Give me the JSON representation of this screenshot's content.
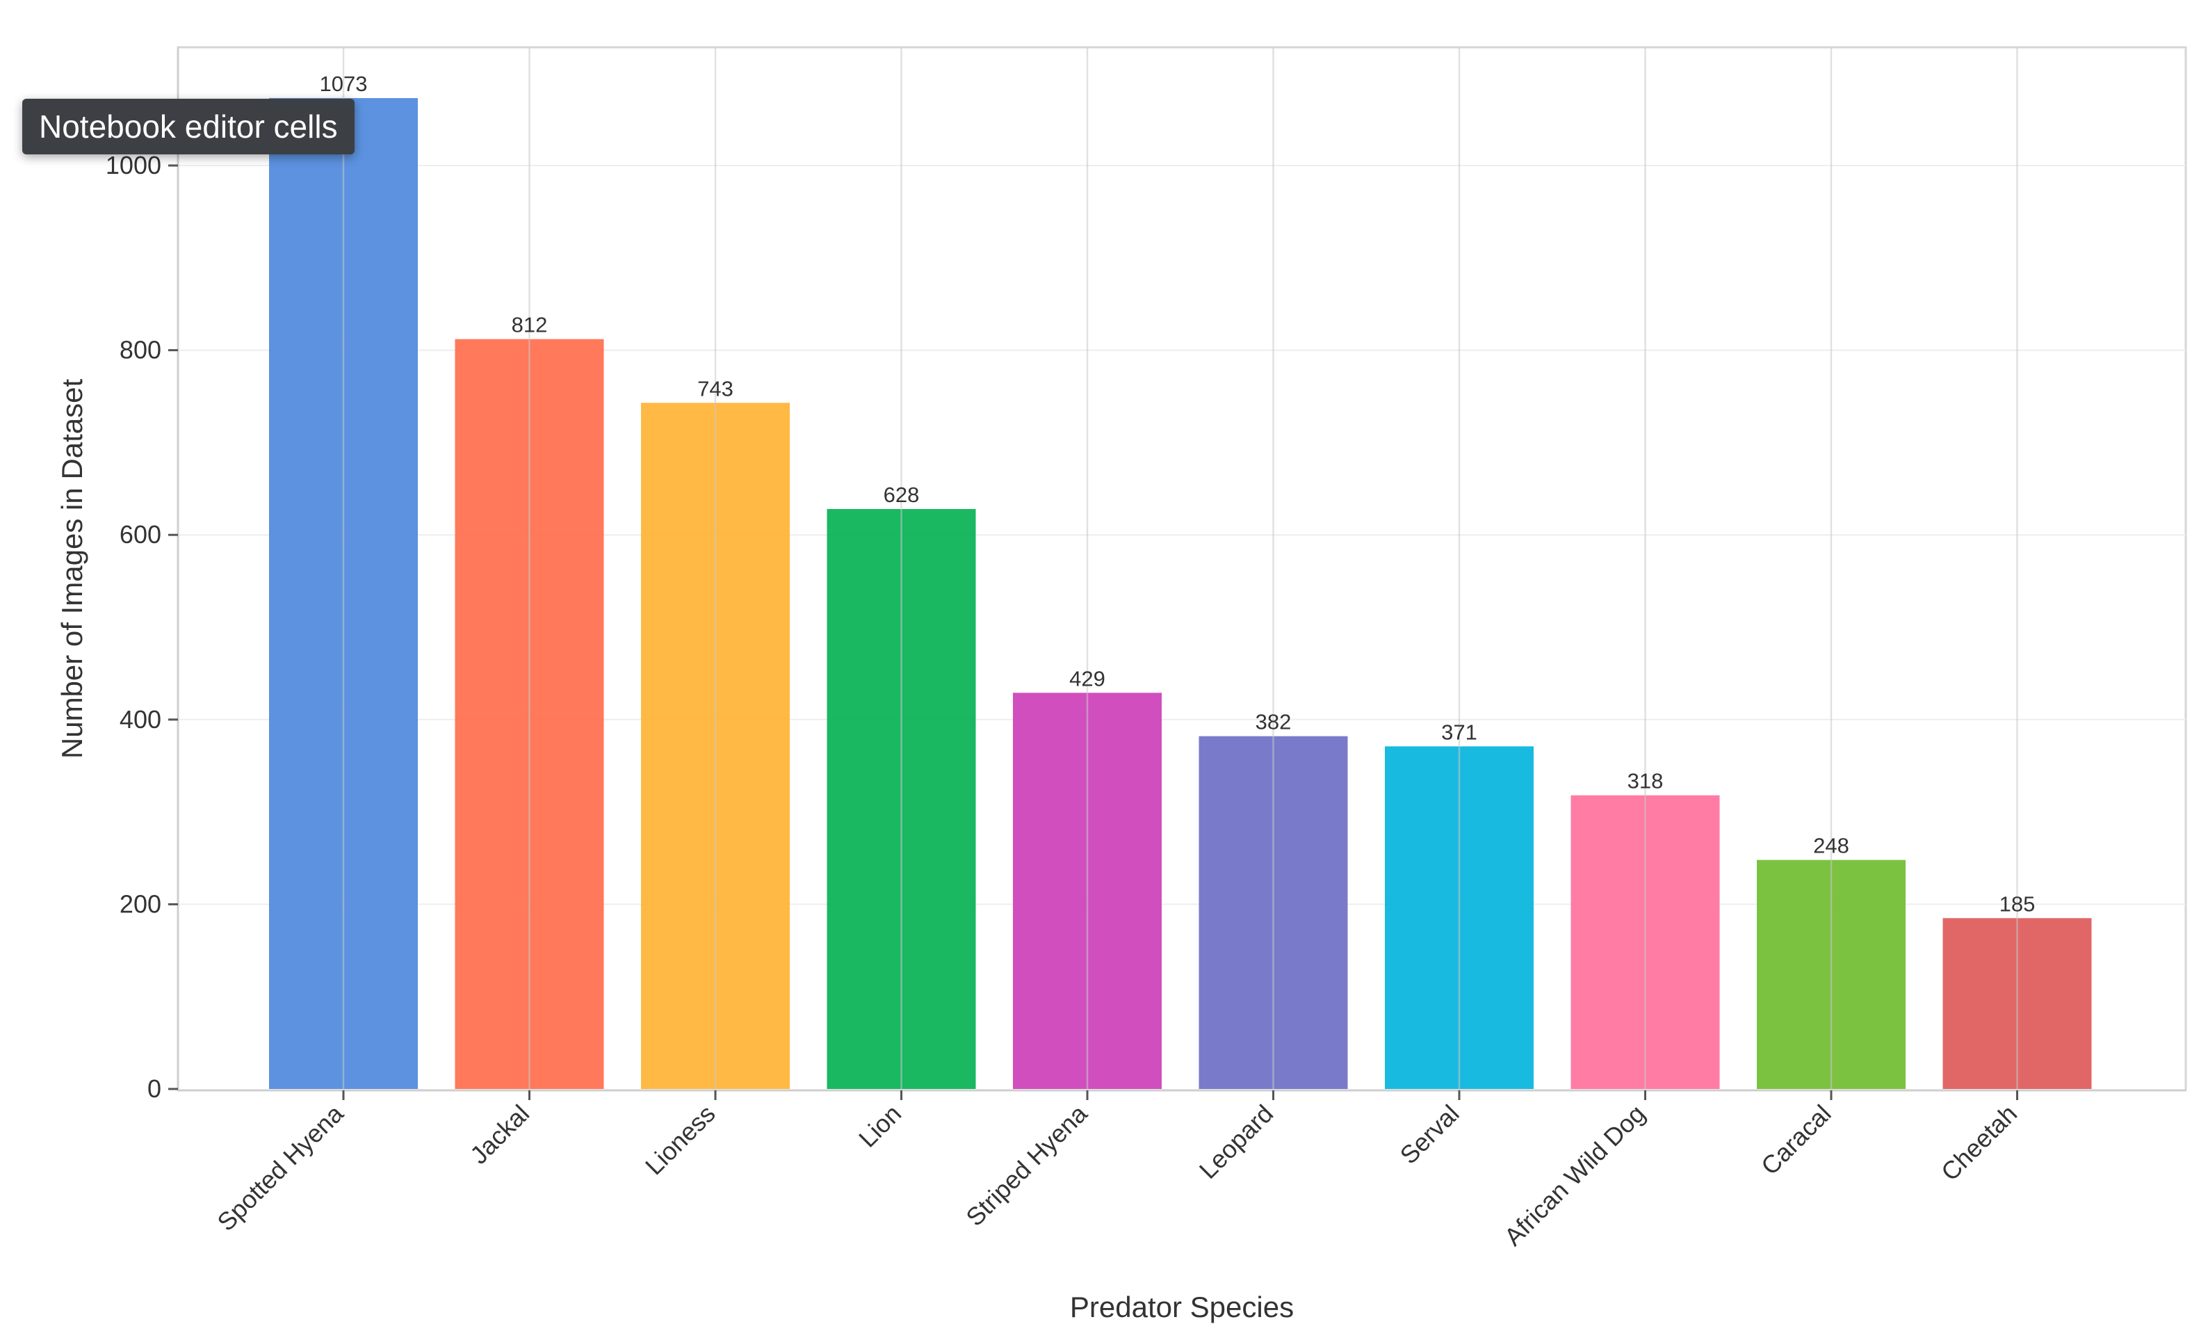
{
  "tooltip": {
    "text": "Notebook editor cells"
  },
  "chart_data": {
    "type": "bar",
    "title": "",
    "xlabel": "Predator Species",
    "ylabel": "Number of Images in Dataset",
    "categories": [
      "Spotted Hyena",
      "Jackal",
      "Lioness",
      "Lion",
      "Striped Hyena",
      "Leopard",
      "Serval",
      "African Wild Dog",
      "Caracal",
      "Cheetah"
    ],
    "values": [
      1073,
      812,
      743,
      628,
      429,
      382,
      371,
      318,
      248,
      185
    ],
    "colors": [
      "#4a86db",
      "#ff6a48",
      "#ffb130",
      "#00b050",
      "#cc3bb8",
      "#6a6cc4",
      "#00b3db",
      "#ff6e9b",
      "#6dbb2c",
      "#de5656"
    ],
    "ylim": [
      0,
      1000
    ],
    "yticks": [
      0,
      200,
      400,
      600,
      800,
      1000
    ],
    "grid": true,
    "legend": "none",
    "data_labels": true
  }
}
